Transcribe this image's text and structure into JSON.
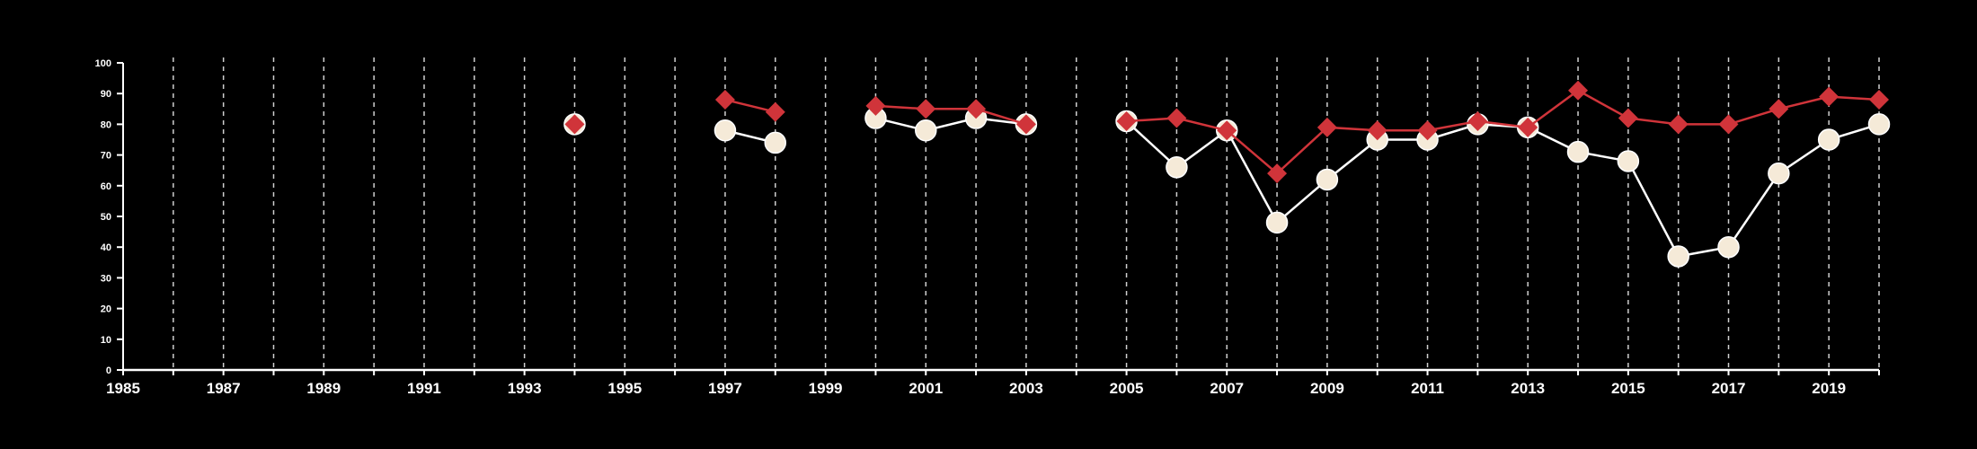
{
  "colors": {
    "background": "#000000",
    "axis": "#ffffff",
    "grid": "#cfcfcf",
    "series_light": "#f5ead8",
    "series_red": "#d0343a"
  },
  "chart_data": {
    "type": "line",
    "title": "",
    "xlabel": "",
    "ylabel": "",
    "xlim": [
      1985,
      2020
    ],
    "ylim": [
      0,
      100
    ],
    "grid": "vertical dashed lines at every year",
    "legend": "none",
    "x_tick_labels": [
      "1985",
      "1987",
      "1989",
      "1991",
      "1993",
      "1995",
      "1997",
      "1999",
      "2001",
      "2003",
      "2005",
      "2007",
      "2009",
      "2011",
      "2013",
      "2015",
      "2017",
      "2019"
    ],
    "y_tick_labels": [
      "0",
      "10",
      "20",
      "30",
      "40",
      "50",
      "60",
      "70",
      "80",
      "90",
      "100"
    ],
    "series": [
      {
        "marker": "circle",
        "color": "#f5ead8",
        "points": [
          [
            1994,
            80
          ],
          [
            1997,
            78
          ],
          [
            1998,
            74
          ],
          [
            2000,
            82
          ],
          [
            2001,
            78
          ],
          [
            2002,
            82
          ],
          [
            2003,
            80
          ],
          [
            2005,
            81
          ],
          [
            2006,
            66
          ],
          [
            2007,
            78
          ],
          [
            2008,
            48
          ],
          [
            2009,
            62
          ],
          [
            2010,
            75
          ],
          [
            2011,
            75
          ],
          [
            2012,
            80
          ],
          [
            2013,
            79
          ],
          [
            2014,
            71
          ],
          [
            2015,
            68
          ],
          [
            2016,
            37
          ],
          [
            2017,
            40
          ],
          [
            2018,
            64
          ],
          [
            2019,
            75
          ],
          [
            2020,
            80
          ]
        ]
      },
      {
        "marker": "diamond",
        "color": "#d0343a",
        "points": [
          [
            1994,
            80
          ],
          [
            1997,
            88
          ],
          [
            1998,
            84
          ],
          [
            2000,
            86
          ],
          [
            2001,
            85
          ],
          [
            2002,
            85
          ],
          [
            2003,
            80
          ],
          [
            2005,
            81
          ],
          [
            2006,
            82
          ],
          [
            2007,
            78
          ],
          [
            2008,
            64
          ],
          [
            2009,
            79
          ],
          [
            2010,
            78
          ],
          [
            2011,
            78
          ],
          [
            2012,
            81
          ],
          [
            2013,
            79
          ],
          [
            2014,
            91
          ],
          [
            2015,
            82
          ],
          [
            2016,
            80
          ],
          [
            2017,
            80
          ],
          [
            2018,
            85
          ],
          [
            2019,
            89
          ],
          [
            2020,
            88
          ]
        ]
      }
    ]
  }
}
